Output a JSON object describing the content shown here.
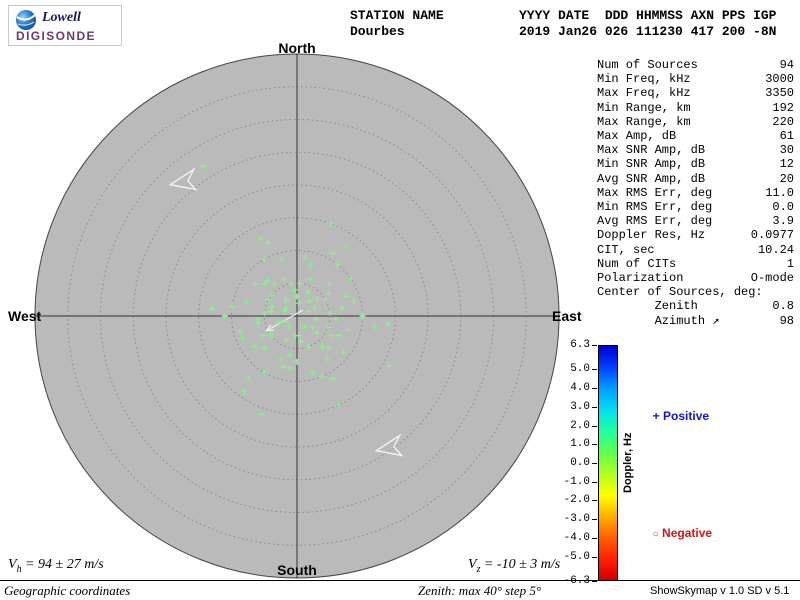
{
  "header": {
    "station_label": "STATION NAME",
    "station_value": "Dourbes",
    "fields_label": "YYYY DATE  DDD HHMMSS AXN PPS IGP",
    "fields_value": "2019 Jan26 026 111230 417 200 -8N",
    "logo_line1": "Lowell",
    "logo_line2": "DIGISONDE"
  },
  "parameters": [
    {
      "label": "Num of Sources",
      "value": "94"
    },
    {
      "label": "Min Freq, kHz",
      "value": "3000"
    },
    {
      "label": "Max Freq, kHz",
      "value": "3350"
    },
    {
      "label": "Min Range, km",
      "value": "192"
    },
    {
      "label": "Max Range, km",
      "value": "220"
    },
    {
      "label": "Max Amp, dB",
      "value": "61"
    },
    {
      "label": "Max SNR Amp, dB",
      "value": "30"
    },
    {
      "label": "Min SNR Amp, dB",
      "value": "12"
    },
    {
      "label": "Avg SNR Amp, dB",
      "value": "20"
    },
    {
      "label": "Max RMS Err, deg",
      "value": "11.0"
    },
    {
      "label": "Min RMS Err, deg",
      "value": "0.0"
    },
    {
      "label": "Avg RMS Err, deg",
      "value": "3.9"
    },
    {
      "label": "Doppler Res, Hz",
      "value": "0.0977"
    },
    {
      "label": "CIT, sec",
      "value": "10.24"
    },
    {
      "label": "Num of CITs",
      "value": "1"
    },
    {
      "label": "Polarization",
      "value": "O-mode"
    },
    {
      "label": "Center of Sources, deg:",
      "value": ""
    },
    {
      "label": "        Zenith",
      "value": "0.8"
    },
    {
      "label": "        Azimuth ↗",
      "value": "98"
    }
  ],
  "compass": {
    "north": "North",
    "south": "South",
    "east": "East",
    "west": "West"
  },
  "colorbar": {
    "title": "Doppler, Hz",
    "scale_max": 6.3,
    "scale_min": -6.3,
    "ticks": [
      "6.3",
      "5.0",
      "4.0",
      "3.0",
      "2.0",
      "1.0",
      "0.0",
      "-1.0",
      "-2.0",
      "-3.0",
      "-4.0",
      "-5.0",
      "-6.3"
    ],
    "gradient": [
      "#0000d0",
      "#0040ff",
      "#00a0ff",
      "#00e0f0",
      "#20ffa0",
      "#60ff50",
      "#b0ff20",
      "#ffff00",
      "#ffb000",
      "#ff6000",
      "#ff2000",
      "#d00000"
    ],
    "positive_symbol": "+",
    "positive_label": " Positive",
    "positive_color": "#1515cc",
    "negative_symbol": "○",
    "negative_label": " Negative",
    "negative_color": "#cc1515"
  },
  "footer": {
    "vh": {
      "symbol": "V",
      "sub": "h",
      "text": " = 94 ± 27 m/s"
    },
    "vz": {
      "symbol": "V",
      "sub": "z",
      "text": " = -10 ± 3 m/s"
    },
    "coordinates_note": "Geographic coordinates",
    "zenith_note": "Zenith: max 40°  step 5°",
    "version": "ShowSkymap v 1.0  SD v 5.1"
  },
  "chart_data": {
    "type": "scatter",
    "projection": "polar_skymap",
    "zenith_max_deg": 40,
    "zenith_step_deg": 5,
    "num_sources": 94,
    "point_color": "#8cf08c",
    "point_marker": "+",
    "doppler_sign": "positive",
    "center_of_sources": {
      "zenith_deg": 0.8,
      "azimuth_deg": 98
    },
    "points_azimuth_zenith_deg": [
      [
        10,
        2
      ],
      [
        25,
        4
      ],
      [
        40,
        3
      ],
      [
        55,
        6
      ],
      [
        70,
        2
      ],
      [
        85,
        5
      ],
      [
        100,
        3
      ],
      [
        115,
        7
      ],
      [
        130,
        4
      ],
      [
        145,
        2
      ],
      [
        160,
        5
      ],
      [
        175,
        3
      ],
      [
        190,
        6
      ],
      [
        205,
        4
      ],
      [
        220,
        2
      ],
      [
        235,
        5
      ],
      [
        250,
        3
      ],
      [
        265,
        6
      ],
      [
        280,
        4
      ],
      [
        295,
        2
      ],
      [
        310,
        5
      ],
      [
        325,
        3
      ],
      [
        340,
        6
      ],
      [
        355,
        4
      ],
      [
        15,
        8
      ],
      [
        45,
        7
      ],
      [
        75,
        9
      ],
      [
        105,
        8
      ],
      [
        135,
        7
      ],
      [
        165,
        9
      ],
      [
        195,
        8
      ],
      [
        225,
        7
      ],
      [
        255,
        9
      ],
      [
        285,
        8
      ],
      [
        315,
        7
      ],
      [
        345,
        9
      ],
      [
        30,
        11
      ],
      [
        90,
        10
      ],
      [
        150,
        11
      ],
      [
        210,
        10
      ],
      [
        270,
        11
      ],
      [
        330,
        10
      ],
      [
        60,
        5
      ],
      [
        120,
        6
      ],
      [
        180,
        7
      ],
      [
        240,
        6
      ],
      [
        300,
        5
      ],
      [
        0,
        3
      ],
      [
        20,
        6
      ],
      [
        50,
        4
      ],
      [
        80,
        7
      ],
      [
        110,
        5
      ],
      [
        140,
        6
      ],
      [
        170,
        4
      ],
      [
        200,
        7
      ],
      [
        230,
        5
      ],
      [
        260,
        6
      ],
      [
        290,
        4
      ],
      [
        320,
        7
      ],
      [
        350,
        5
      ],
      [
        8,
        9
      ],
      [
        38,
        10
      ],
      [
        68,
        8
      ],
      [
        98,
        12
      ],
      [
        128,
        9
      ],
      [
        158,
        10
      ],
      [
        188,
        8
      ],
      [
        218,
        12
      ],
      [
        248,
        9
      ],
      [
        278,
        10
      ],
      [
        308,
        8
      ],
      [
        338,
        12
      ],
      [
        95,
        14
      ],
      [
        275,
        13
      ],
      [
        35,
        13
      ],
      [
        215,
        14
      ],
      [
        155,
        15
      ],
      [
        335,
        13
      ],
      [
        125,
        3
      ],
      [
        305,
        2
      ],
      [
        65,
        3
      ],
      [
        245,
        2
      ],
      [
        185,
        3
      ],
      [
        5,
        5
      ],
      [
        95,
        6
      ],
      [
        275,
        5
      ],
      [
        145,
        8
      ],
      [
        325,
        6
      ],
      [
        55,
        10
      ],
      [
        235,
        8
      ],
      [
        328,
        27
      ],
      [
        118,
        16
      ],
      [
        200,
        16
      ],
      [
        20,
        15
      ]
    ]
  }
}
